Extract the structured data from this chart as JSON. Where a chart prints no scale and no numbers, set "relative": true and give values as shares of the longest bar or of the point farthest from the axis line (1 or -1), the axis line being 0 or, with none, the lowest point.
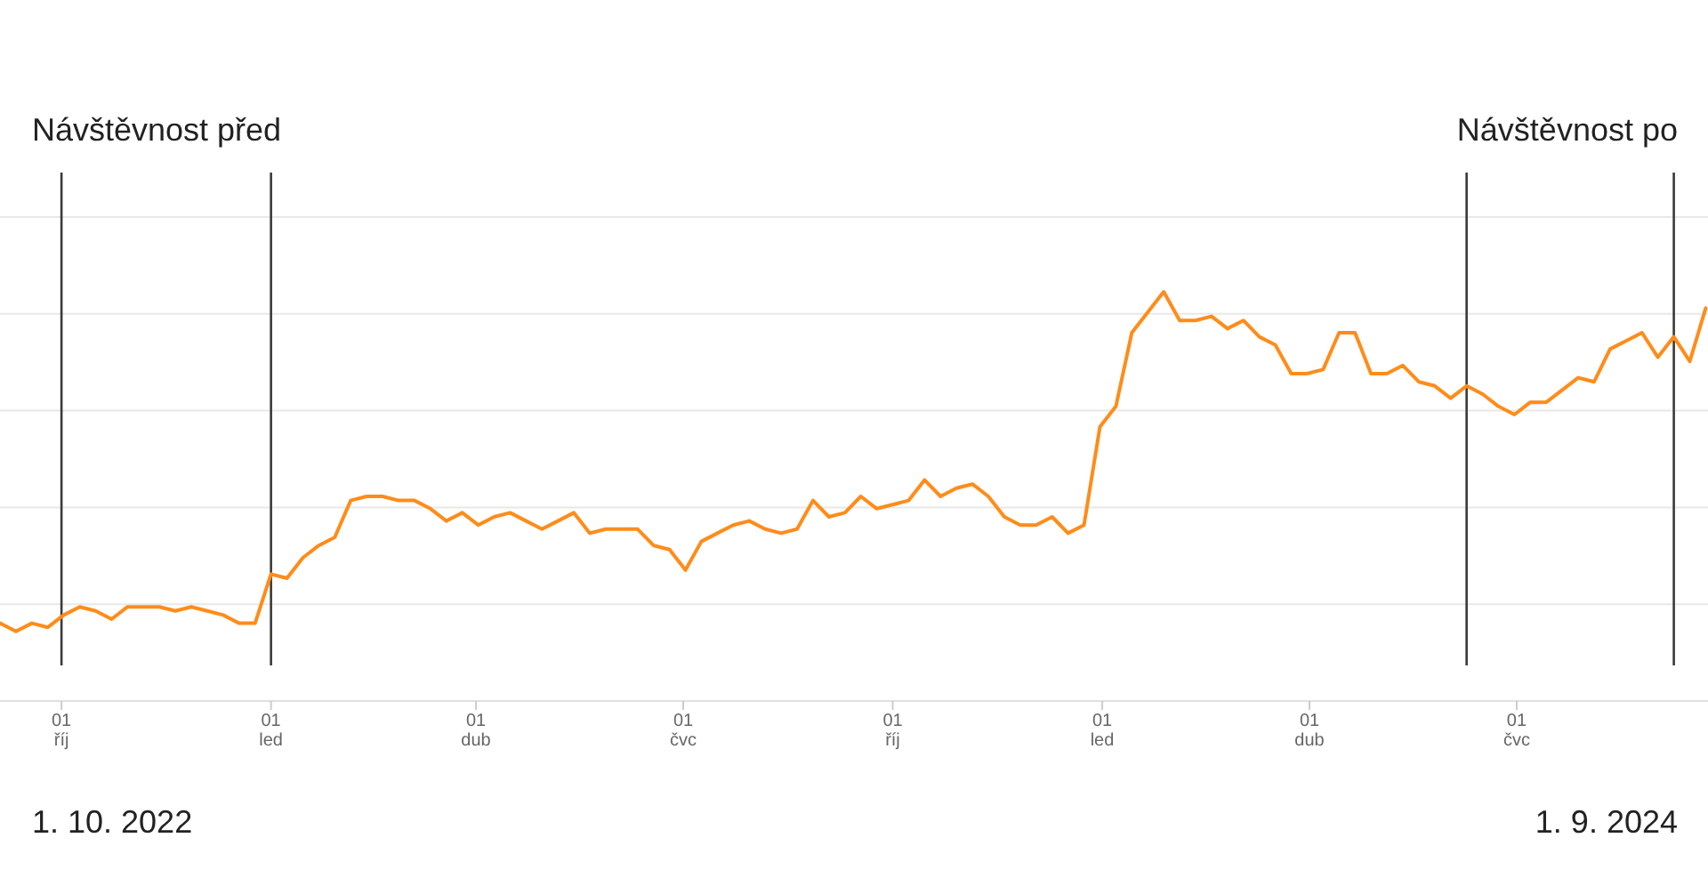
{
  "chart_data": {
    "type": "line",
    "relative": true,
    "grid": true,
    "marker": "none",
    "line_style": "solid",
    "annotations": [
      "Návštěvnost před",
      "Návštěvnost po",
      "1. 10. 2022",
      "1. 9. 2024"
    ],
    "xlim": [
      "2022-09-04",
      "2024-09-23"
    ],
    "xticks": [
      {
        "value": "2022-10-01",
        "label": "01\nříj"
      },
      {
        "value": "2023-01-01",
        "label": "01\nled"
      },
      {
        "value": "2023-04-01",
        "label": "01\ndub"
      },
      {
        "value": "2023-07-01",
        "label": "01\nčvc"
      },
      {
        "value": "2023-10-01",
        "label": "01\nříj"
      },
      {
        "value": "2024-01-01",
        "label": "01\nled"
      },
      {
        "value": "2024-04-01",
        "label": "01\ndub"
      },
      {
        "value": "2024-07-01",
        "label": "01\nčvc"
      }
    ],
    "ref_lines": [
      {
        "axis": "x",
        "value": "2022-10-01",
        "color": "#3a3a3a"
      },
      {
        "axis": "x",
        "value": "2023-01-01",
        "color": "#3a3a3a"
      },
      {
        "axis": "x",
        "value": "2024-06-09",
        "color": "#3a3a3a"
      },
      {
        "axis": "x",
        "value": "2024-09-08",
        "color": "#3a3a3a"
      }
    ],
    "x": [
      "2022-09-04",
      "2022-09-11",
      "2022-09-18",
      "2022-09-25",
      "2022-10-02",
      "2022-10-09",
      "2022-10-16",
      "2022-10-23",
      "2022-10-30",
      "2022-11-06",
      "2022-11-13",
      "2022-11-20",
      "2022-11-27",
      "2022-12-04",
      "2022-12-11",
      "2022-12-18",
      "2022-12-25",
      "2023-01-01",
      "2023-01-08",
      "2023-01-15",
      "2023-01-22",
      "2023-01-29",
      "2023-02-05",
      "2023-02-12",
      "2023-02-19",
      "2023-02-26",
      "2023-03-05",
      "2023-03-12",
      "2023-03-19",
      "2023-03-26",
      "2023-04-02",
      "2023-04-09",
      "2023-04-16",
      "2023-04-23",
      "2023-04-30",
      "2023-05-07",
      "2023-05-14",
      "2023-05-21",
      "2023-05-28",
      "2023-06-04",
      "2023-06-11",
      "2023-06-18",
      "2023-06-25",
      "2023-07-02",
      "2023-07-09",
      "2023-07-16",
      "2023-07-23",
      "2023-07-30",
      "2023-08-06",
      "2023-08-13",
      "2023-08-20",
      "2023-08-27",
      "2023-09-03",
      "2023-09-10",
      "2023-09-17",
      "2023-09-24",
      "2023-10-01",
      "2023-10-08",
      "2023-10-15",
      "2023-10-22",
      "2023-10-29",
      "2023-11-05",
      "2023-11-12",
      "2023-11-19",
      "2023-11-26",
      "2023-12-03",
      "2023-12-10",
      "2023-12-17",
      "2023-12-24",
      "2023-12-31",
      "2024-01-07",
      "2024-01-14",
      "2024-01-21",
      "2024-01-28",
      "2024-02-04",
      "2024-02-11",
      "2024-02-18",
      "2024-02-25",
      "2024-03-03",
      "2024-03-10",
      "2024-03-17",
      "2024-03-24",
      "2024-03-31",
      "2024-04-07",
      "2024-04-14",
      "2024-04-21",
      "2024-04-28",
      "2024-05-05",
      "2024-05-12",
      "2024-05-19",
      "2024-05-26",
      "2024-06-02",
      "2024-06-09",
      "2024-06-16",
      "2024-06-23",
      "2024-06-30",
      "2024-07-07",
      "2024-07-14",
      "2024-07-21",
      "2024-07-28",
      "2024-08-04",
      "2024-08-11",
      "2024-08-18",
      "2024-08-25",
      "2024-09-01",
      "2024-09-08",
      "2024-09-15",
      "2024-09-22"
    ],
    "series": [
      {
        "color": "#ff8c1a",
        "values": [
          0.19,
          0.17,
          0.19,
          0.18,
          0.21,
          0.23,
          0.22,
          0.2,
          0.23,
          0.23,
          0.23,
          0.22,
          0.23,
          0.22,
          0.21,
          0.19,
          0.19,
          0.31,
          0.3,
          0.35,
          0.38,
          0.4,
          0.49,
          0.5,
          0.5,
          0.49,
          0.49,
          0.47,
          0.44,
          0.46,
          0.43,
          0.45,
          0.46,
          0.44,
          0.42,
          0.44,
          0.46,
          0.41,
          0.42,
          0.42,
          0.42,
          0.38,
          0.37,
          0.32,
          0.39,
          0.41,
          0.43,
          0.44,
          0.42,
          0.41,
          0.42,
          0.49,
          0.45,
          0.46,
          0.5,
          0.47,
          0.48,
          0.49,
          0.54,
          0.5,
          0.52,
          0.53,
          0.5,
          0.45,
          0.43,
          0.43,
          0.45,
          0.41,
          0.43,
          0.67,
          0.72,
          0.9,
          0.95,
          1,
          0.93,
          0.93,
          0.94,
          0.91,
          0.93,
          0.89,
          0.87,
          0.8,
          0.8,
          0.81,
          0.9,
          0.9,
          0.8,
          0.8,
          0.82,
          0.78,
          0.77,
          0.74,
          0.77,
          0.75,
          0.72,
          0.7,
          0.73,
          0.73,
          0.76,
          0.79,
          0.78,
          0.86,
          0.88,
          0.9,
          0.84,
          0.89,
          0.83,
          0.96
        ]
      }
    ]
  }
}
